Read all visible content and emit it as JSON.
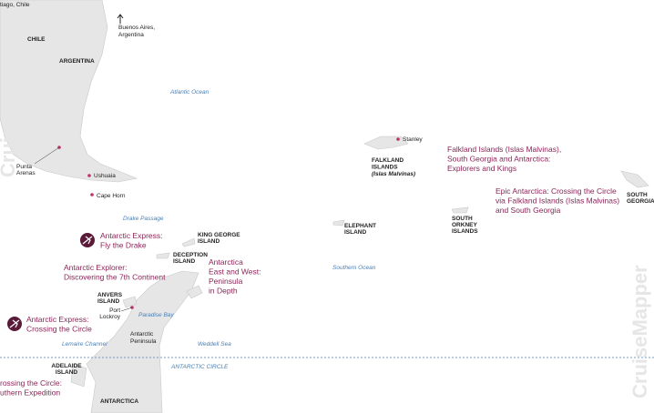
{
  "places": [
    {
      "lines": [
        "tiago, Chile"
      ]
    },
    {
      "lines": [
        "CHILE"
      ]
    },
    {
      "lines": [
        "ARGENTINA"
      ]
    },
    {
      "lines": [
        "Buenos Aires,",
        "Argentina"
      ]
    },
    {
      "lines": [
        "Punta",
        "Arenas"
      ]
    },
    {
      "lines": [
        "Ushuaia"
      ]
    },
    {
      "lines": [
        "Cape Horn"
      ]
    },
    {
      "lines": [
        "KING GEORGE",
        "ISLAND"
      ]
    },
    {
      "lines": [
        "DECEPTION",
        "ISLAND"
      ]
    },
    {
      "lines": [
        "ANVERS",
        "ISLAND"
      ]
    },
    {
      "lines": [
        "Port",
        "Lockroy"
      ]
    },
    {
      "lines": [
        "Antarctic",
        "Peninsula"
      ]
    },
    {
      "lines": [
        "ADELAIDE",
        "ISLAND"
      ]
    },
    {
      "lines": [
        "ANTARCTICA"
      ]
    },
    {
      "lines": [
        "Stanley"
      ]
    },
    {
      "lines": [
        "FALKLAND",
        "ISLANDS",
        "(Islas Malvinas)"
      ]
    },
    {
      "lines": [
        "ELEPHANT",
        "ISLAND"
      ]
    },
    {
      "lines": [
        "SOUTH",
        "ORKNEY",
        "ISLANDS"
      ]
    },
    {
      "lines": [
        "SOUTH",
        "GEORGIA"
      ]
    }
  ],
  "water": [
    "Atlantic Ocean",
    "Drake Passage",
    "Paradise Bay",
    "Lemaire Channel",
    "Weddell Sea",
    "Southern Ocean",
    "ANTARCTIC CIRCLE"
  ],
  "routes": [
    {
      "lines": [
        "Antarctic Express:",
        "Fly the Drake"
      ]
    },
    {
      "lines": [
        "Antarctic Explorer:",
        "Discovering the 7th Continent"
      ]
    },
    {
      "lines": [
        "Antarctica",
        "East and West:",
        "Peninsula",
        "in Depth"
      ]
    },
    {
      "lines": [
        "Antarctic Express:",
        "Crossing the Circle"
      ]
    },
    {
      "lines": [
        "rossing the Circle:",
        "uthern Expedition"
      ]
    },
    {
      "lines": [
        "Falkland Islands (Islas Malvinas),",
        "South Georgia and Antarctica:",
        "Explorers and Kings"
      ]
    },
    {
      "lines": [
        "Epic Antarctica: Crossing the Circle",
        "via Falkland Islands (Islas Malvinas)",
        "and South Georgia"
      ]
    }
  ],
  "watermark": "CruiseMapper"
}
